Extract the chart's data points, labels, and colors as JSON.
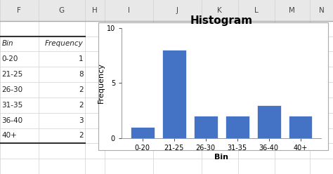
{
  "categories": [
    "0-20",
    "21-25",
    "26-30",
    "31-35",
    "36-40",
    "40+"
  ],
  "values": [
    1,
    8,
    2,
    2,
    3,
    2
  ],
  "bar_color": "#4472C4",
  "bar_edge_color": "#FFFFFF",
  "title": "Histogram",
  "xlabel": "Bin",
  "ylabel": "Frequency",
  "ylim": [
    0,
    10
  ],
  "yticks": [
    0,
    5,
    10
  ],
  "title_fontsize": 11,
  "axis_label_fontsize": 8,
  "tick_fontsize": 7,
  "col_headers": [
    "F",
    "G",
    "H",
    "I",
    "J",
    "K",
    "L",
    "M",
    "N"
  ],
  "table_headers": [
    "Bin",
    "Frequency"
  ],
  "table_data": [
    [
      "0-20",
      "1"
    ],
    [
      "21-25",
      "8"
    ],
    [
      "26-30",
      "2"
    ],
    [
      "31-35",
      "2"
    ],
    [
      "36-40",
      "3"
    ],
    [
      "40+",
      "2"
    ]
  ],
  "excel_bg": "#FFFFFF",
  "grid_color": "#D0D0D0",
  "col_header_bg": "#E8E8E8",
  "table_border_color": "#555555",
  "chart_border_color": "#AAAAAA"
}
